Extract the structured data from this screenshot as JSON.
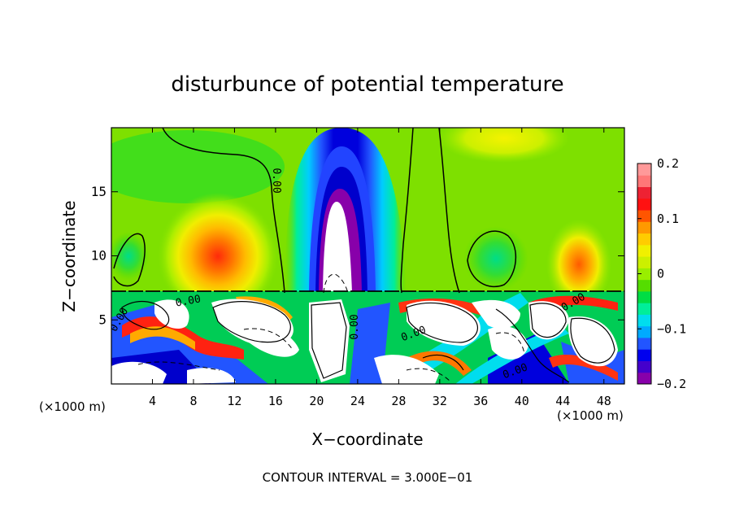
{
  "chart_data": {
    "type": "heatmap",
    "title": "disturbunce of potential temperature",
    "xlabel": "X−coordinate",
    "ylabel": "Z−coordinate",
    "x_unit_left": "(×1000 m)",
    "x_unit_right": "(×1000 m)",
    "footer": "CONTOUR INTERVAL = 3.000E−01",
    "xlim": [
      0,
      50
    ],
    "ylim": [
      0,
      20
    ],
    "x_ticks": [
      4,
      8,
      12,
      16,
      20,
      24,
      28,
      32,
      36,
      40,
      44,
      48
    ],
    "y_ticks": [
      5,
      10,
      15
    ],
    "colorbar": {
      "range": [
        -0.2,
        0.2
      ],
      "ticks": [
        {
          "value": 0.2,
          "label": "0.2"
        },
        {
          "value": 0.1,
          "label": "0.1"
        },
        {
          "value": 0,
          "label": "0"
        },
        {
          "value": -0.1,
          "label": "−0.1"
        },
        {
          "value": -0.2,
          "label": "−0.2"
        }
      ],
      "colors": [
        "#8800aa",
        "#4400cc",
        "#0000ee",
        "#2255ff",
        "#00aaff",
        "#00ddee",
        "#00ee99",
        "#00dd44",
        "#55dd00",
        "#99ee00",
        "#ccf000",
        "#f0f000",
        "#ffcc00",
        "#ff9900",
        "#ff5500",
        "#ff1111",
        "#ee2233",
        "#ff7777",
        "#ff9999"
      ]
    },
    "contour_labels": [
      "0.00",
      "0.00",
      "0.00",
      "0.00",
      "0.00",
      "0.00",
      "0.00"
    ],
    "features": [
      {
        "name": "negative-plume",
        "x": 22,
        "z": [
          7,
          20
        ],
        "value": -0.2
      },
      {
        "name": "positive-maximum-left",
        "x": 10,
        "z": 10,
        "value": 0.15
      },
      {
        "name": "positive-maximum-right",
        "x": 46,
        "z": 9.5,
        "value": 0.12
      },
      {
        "name": "turbulent-lower-layer",
        "z": [
          0,
          7
        ]
      }
    ]
  }
}
